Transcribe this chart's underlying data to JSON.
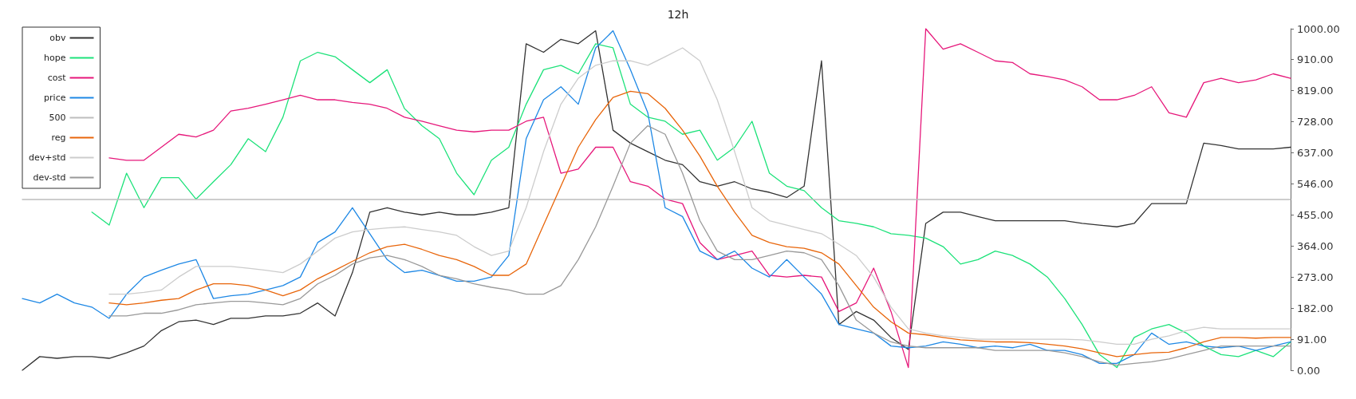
{
  "chart_data": {
    "type": "line",
    "title": "12h",
    "marker": "none",
    "line_style": "solid",
    "legend": "top left",
    "tick_labels": "y",
    "categories": [
      null,
      null,
      null,
      null,
      null,
      null,
      null,
      null,
      null,
      null,
      null,
      null,
      null,
      null,
      null,
      null,
      null,
      null,
      null,
      null,
      null,
      null,
      null,
      null,
      null,
      null,
      null,
      null,
      null,
      null,
      null,
      null,
      null,
      null,
      null,
      null,
      null,
      null,
      null,
      null,
      null,
      null,
      null,
      null,
      null,
      null,
      null,
      null,
      null,
      null,
      null,
      null,
      null,
      null,
      null,
      null,
      null,
      null,
      null,
      null,
      null,
      null,
      null,
      null,
      null,
      null,
      null,
      null,
      null,
      null,
      null,
      null,
      null,
      null
    ],
    "ylim": [
      0,
      1000
    ],
    "yticks": [
      {
        "value": 0,
        "label": "0.00"
      },
      {
        "value": 91,
        "label": "91.00"
      },
      {
        "value": 182,
        "label": "182.00"
      },
      {
        "value": 273,
        "label": "273.00"
      },
      {
        "value": 364,
        "label": "364.00"
      },
      {
        "value": 455,
        "label": "455.00"
      },
      {
        "value": 546,
        "label": "546.00"
      },
      {
        "value": 637,
        "label": "637.00"
      },
      {
        "value": 728,
        "label": "728.00"
      },
      {
        "value": 819,
        "label": "819.00"
      },
      {
        "value": 910,
        "label": "910.00"
      },
      {
        "value": 1000,
        "label": "1000.00"
      }
    ],
    "series": [
      {
        "name": "obv",
        "color": "#333333",
        "values": [
          0,
          40,
          35,
          40,
          40,
          35,
          51,
          71,
          116,
          142,
          147,
          134,
          152,
          152,
          159,
          159,
          167,
          197,
          159,
          286,
          463,
          476,
          463,
          455,
          463,
          455,
          455,
          463,
          476,
          956,
          931,
          969,
          956,
          994,
          703,
          665,
          640,
          615,
          602,
          552,
          539,
          552,
          531,
          521,
          506,
          539,
          906,
          134,
          172,
          147,
          96,
          61,
          430,
          463,
          463,
          450,
          438,
          438,
          438,
          438,
          438,
          430,
          425,
          420,
          430,
          488,
          488,
          488,
          665,
          658,
          648,
          648,
          648,
          653
        ]
      },
      {
        "name": "hope",
        "color": "#1de27a",
        "values": [
          null,
          null,
          null,
          null,
          463,
          425,
          577,
          476,
          564,
          564,
          501,
          552,
          602,
          678,
          640,
          741,
          906,
          931,
          918,
          880,
          842,
          880,
          766,
          716,
          678,
          577,
          514,
          615,
          653,
          779,
          880,
          893,
          868,
          956,
          944,
          779,
          741,
          729,
          691,
          703,
          615,
          653,
          729,
          577,
          539,
          526,
          476,
          438,
          430,
          420,
          400,
          395,
          387,
          362,
          311,
          324,
          349,
          336,
          311,
          273,
          210,
          134,
          46,
          8,
          96,
          121,
          134,
          109,
          71,
          46,
          40,
          58,
          40,
          83
        ]
      },
      {
        "name": "cost",
        "color": "#e6177a",
        "values": [
          null,
          null,
          null,
          null,
          null,
          622,
          615,
          615,
          653,
          691,
          683,
          703,
          759,
          767,
          779,
          792,
          805,
          792,
          792,
          784,
          779,
          767,
          741,
          729,
          716,
          703,
          698,
          703,
          703,
          729,
          741,
          577,
          589,
          653,
          653,
          552,
          539,
          501,
          488,
          374,
          324,
          336,
          349,
          278,
          273,
          278,
          273,
          172,
          197,
          299,
          172,
          8,
          1000,
          940,
          956,
          931,
          906,
          901,
          868,
          860,
          850,
          830,
          792,
          792,
          805,
          830,
          754,
          741,
          842,
          855,
          842,
          850,
          868,
          855
        ]
      },
      {
        "name": "price",
        "color": "#1e88e5",
        "values": [
          210,
          197,
          223,
          197,
          185,
          152,
          223,
          273,
          293,
          311,
          324,
          210,
          218,
          223,
          235,
          248,
          273,
          374,
          405,
          476,
          400,
          324,
          286,
          293,
          278,
          261,
          261,
          273,
          336,
          678,
          792,
          830,
          779,
          944,
          994,
          880,
          754,
          476,
          450,
          349,
          324,
          349,
          299,
          273,
          324,
          273,
          223,
          134,
          121,
          109,
          71,
          66,
          71,
          83,
          76,
          66,
          71,
          66,
          76,
          58,
          58,
          46,
          20,
          20,
          46,
          109,
          76,
          83,
          71,
          66,
          71,
          58,
          71,
          83
        ]
      },
      {
        "name": "500",
        "color": "#bdbdbd",
        "values": [
          500,
          500,
          500,
          500,
          500,
          500,
          500,
          500,
          500,
          500,
          500,
          500,
          500,
          500,
          500,
          500,
          500,
          500,
          500,
          500,
          500,
          500,
          500,
          500,
          500,
          500,
          500,
          500,
          500,
          500,
          500,
          500,
          500,
          500,
          500,
          500,
          500,
          500,
          500,
          500,
          500,
          500,
          500,
          500,
          500,
          500,
          500,
          500,
          500,
          500,
          500,
          500,
          500,
          500,
          500,
          500,
          500,
          500,
          500,
          500,
          500,
          500,
          500,
          500,
          500,
          500,
          500,
          500,
          500,
          500,
          500,
          500,
          500,
          500
        ]
      },
      {
        "name": "reg",
        "color": "#e8650a",
        "values": [
          null,
          null,
          null,
          null,
          null,
          197,
          192,
          197,
          205,
          210,
          235,
          253,
          253,
          248,
          235,
          218,
          235,
          268,
          293,
          319,
          344,
          362,
          369,
          354,
          336,
          324,
          304,
          278,
          278,
          311,
          425,
          539,
          653,
          734,
          799,
          817,
          810,
          767,
          703,
          627,
          539,
          463,
          395,
          374,
          362,
          357,
          344,
          311,
          248,
          185,
          142,
          109,
          104,
          96,
          89,
          86,
          83,
          83,
          81,
          76,
          71,
          63,
          51,
          40,
          46,
          51,
          53,
          66,
          83,
          96,
          96,
          94,
          96,
          96
        ]
      },
      {
        "name": "dev+std",
        "color": "#cccccc",
        "values": [
          null,
          null,
          null,
          null,
          null,
          223,
          223,
          228,
          235,
          273,
          304,
          304,
          304,
          299,
          293,
          286,
          311,
          349,
          387,
          405,
          412,
          417,
          420,
          412,
          405,
          395,
          362,
          336,
          349,
          476,
          640,
          779,
          855,
          893,
          906,
          906,
          893,
          918,
          944,
          906,
          792,
          640,
          476,
          438,
          425,
          412,
          400,
          369,
          336,
          273,
          185,
          121,
          109,
          101,
          96,
          91,
          91,
          91,
          91,
          91,
          91,
          89,
          83,
          76,
          76,
          91,
          101,
          116,
          126,
          121,
          121,
          121,
          121,
          121
        ]
      },
      {
        "name": "dev-std",
        "color": "#999999",
        "values": [
          null,
          null,
          null,
          null,
          null,
          159,
          159,
          167,
          167,
          177,
          192,
          197,
          202,
          202,
          197,
          192,
          210,
          253,
          278,
          311,
          329,
          336,
          324,
          304,
          278,
          268,
          253,
          243,
          235,
          223,
          223,
          248,
          324,
          420,
          539,
          665,
          716,
          691,
          577,
          438,
          349,
          324,
          324,
          336,
          349,
          344,
          324,
          248,
          147,
          109,
          83,
          71,
          66,
          66,
          66,
          66,
          58,
          58,
          58,
          58,
          51,
          40,
          25,
          15,
          20,
          25,
          33,
          46,
          58,
          71,
          71,
          71,
          71,
          71
        ]
      }
    ]
  }
}
